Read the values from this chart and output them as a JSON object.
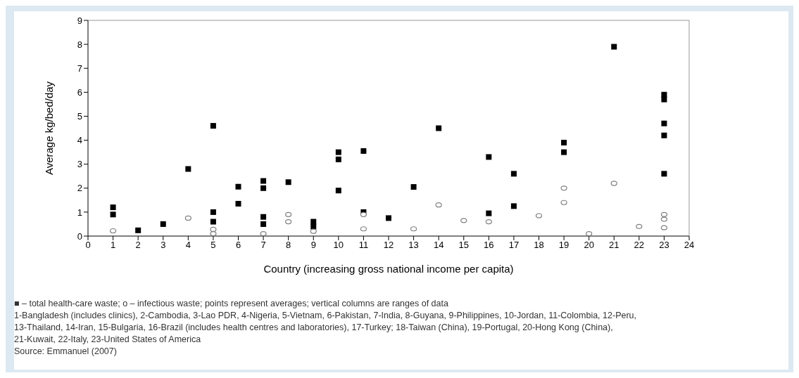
{
  "chart_data": {
    "type": "scatter",
    "xlabel": "Country (increasing gross national income per capita)",
    "ylabel": "Average kg/bed/day",
    "xlim": [
      0,
      24
    ],
    "xticks": [
      0,
      1,
      2,
      3,
      4,
      5,
      6,
      7,
      8,
      9,
      10,
      11,
      12,
      13,
      14,
      15,
      16,
      17,
      18,
      19,
      20,
      21,
      22,
      23,
      24
    ],
    "ylim": [
      0,
      9
    ],
    "yticks": [
      0,
      1,
      2,
      3,
      4,
      5,
      6,
      7,
      8,
      9
    ],
    "grid": false,
    "legend": false,
    "series": [
      {
        "color": "#000000",
        "marker": "square",
        "x": [
          1,
          1,
          2,
          3,
          4,
          5,
          5,
          5,
          6,
          6,
          7,
          7,
          7,
          7,
          8,
          9,
          9,
          10,
          10,
          10,
          11,
          11,
          12,
          13,
          14,
          16,
          16,
          17,
          17,
          19,
          19,
          21,
          23,
          23,
          23,
          23,
          23
        ],
        "values": [
          1.2,
          0.9,
          0.24,
          0.5,
          2.8,
          4.6,
          1.0,
          0.6,
          2.06,
          1.35,
          2.3,
          2.0,
          0.8,
          0.5,
          2.25,
          0.6,
          0.4,
          3.5,
          3.2,
          1.9,
          3.55,
          1.0,
          0.75,
          2.05,
          4.5,
          3.3,
          0.95,
          2.6,
          1.25,
          3.9,
          3.5,
          7.9,
          5.9,
          5.7,
          4.7,
          4.2,
          2.6
        ]
      },
      {
        "color": "#808080",
        "marker": "circle",
        "x": [
          1,
          4,
          5,
          5,
          7,
          8,
          8,
          9,
          11,
          11,
          13,
          14,
          15,
          16,
          18,
          19,
          19,
          20,
          21,
          22,
          23,
          23,
          23
        ],
        "values": [
          0.22,
          0.75,
          0.28,
          0.1,
          0.1,
          0.9,
          0.6,
          0.2,
          0.9,
          0.3,
          0.3,
          1.3,
          0.65,
          0.6,
          0.85,
          2.0,
          1.4,
          0.1,
          2.2,
          0.4,
          0.9,
          0.7,
          0.35
        ]
      }
    ],
    "annotations": [
      "■ – total health-care waste; o – infectious waste; points represent averages; vertical columns are ranges of data",
      "1-Bangladesh (includes clinics), 2-Cambodia, 3-Lao PDR, 4-Nigeria, 5-Vietnam, 6-Pakistan, 7-India, 8-Guyana, 9-Philippines, 10-Jordan, 11-Colombia, 12-Peru,",
      "13-Thailand, 14-Iran, 15-Bulgaria, 16-Brazil (includes health centres and laboratories), 17-Turkey; 18-Taiwan (China), 19-Portugal, 20-Hong Kong (China),",
      "21-Kuwait, 22-Italy, 23-United States of America",
      "Source: Emmanuel (2007)"
    ]
  }
}
